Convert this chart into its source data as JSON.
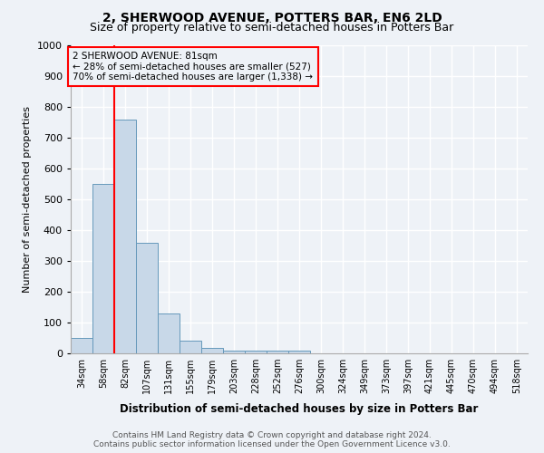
{
  "title1": "2, SHERWOOD AVENUE, POTTERS BAR, EN6 2LD",
  "title2": "Size of property relative to semi-detached houses in Potters Bar",
  "xlabel": "Distribution of semi-detached houses by size in Potters Bar",
  "ylabel": "Number of semi-detached properties",
  "bins": [
    "34sqm",
    "58sqm",
    "82sqm",
    "107sqm",
    "131sqm",
    "155sqm",
    "179sqm",
    "203sqm",
    "228sqm",
    "252sqm",
    "276sqm",
    "300sqm",
    "324sqm",
    "349sqm",
    "373sqm",
    "397sqm",
    "421sqm",
    "445sqm",
    "470sqm",
    "494sqm",
    "518sqm"
  ],
  "values": [
    50,
    550,
    760,
    360,
    128,
    40,
    18,
    10,
    10,
    10,
    10,
    0,
    0,
    0,
    0,
    0,
    0,
    0,
    0,
    0,
    0
  ],
  "bar_color": "#c8d8e8",
  "bar_edge_color": "#6699bb",
  "red_line_bin_index": 2,
  "red_line_label": "2 SHERWOOD AVENUE: 81sqm",
  "annotation_line1": "← 28% of semi-detached houses are smaller (527)",
  "annotation_line2": "70% of semi-detached houses are larger (1,338) →",
  "ylim": [
    0,
    1000
  ],
  "yticks": [
    0,
    100,
    200,
    300,
    400,
    500,
    600,
    700,
    800,
    900,
    1000
  ],
  "footer1": "Contains HM Land Registry data © Crown copyright and database right 2024.",
  "footer2": "Contains public sector information licensed under the Open Government Licence v3.0.",
  "background_color": "#eef2f7",
  "grid_color": "#ffffff",
  "title1_fontsize": 10,
  "title2_fontsize": 9
}
